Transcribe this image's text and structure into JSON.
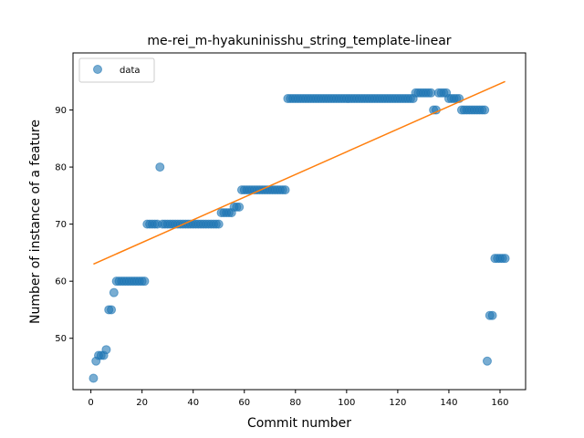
{
  "chart_data": {
    "type": "scatter",
    "title": "me-rei_m-hyakuninisshu_string_template-linear",
    "xlabel": "Commit number",
    "ylabel": "Number of instance of a feature",
    "xlim": [
      -7,
      170
    ],
    "ylim": [
      41,
      100
    ],
    "xticks": [
      0,
      20,
      40,
      60,
      80,
      100,
      120,
      140,
      160
    ],
    "yticks": [
      50,
      60,
      70,
      80,
      90
    ],
    "legend": {
      "position": "top-left",
      "entries": [
        "data"
      ]
    },
    "colors": {
      "data": "#1f77b4",
      "fit": "#ff7f0e"
    },
    "series": [
      {
        "name": "data",
        "kind": "scatter",
        "points": [
          [
            1,
            43
          ],
          [
            2,
            46
          ],
          [
            3,
            47
          ],
          [
            4,
            47
          ],
          [
            5,
            47
          ],
          [
            6,
            48
          ],
          [
            7,
            55
          ],
          [
            8,
            55
          ],
          [
            9,
            58
          ],
          [
            10,
            60
          ],
          [
            11,
            60
          ],
          [
            12,
            60
          ],
          [
            13,
            60
          ],
          [
            14,
            60
          ],
          [
            15,
            60
          ],
          [
            16,
            60
          ],
          [
            17,
            60
          ],
          [
            18,
            60
          ],
          [
            19,
            60
          ],
          [
            20,
            60
          ],
          [
            21,
            60
          ],
          [
            22,
            70
          ],
          [
            23,
            70
          ],
          [
            24,
            70
          ],
          [
            25,
            70
          ],
          [
            26,
            70
          ],
          [
            27,
            80
          ],
          [
            28,
            70
          ],
          [
            29,
            70
          ],
          [
            30,
            70
          ],
          [
            31,
            70
          ],
          [
            32,
            70
          ],
          [
            33,
            70
          ],
          [
            34,
            70
          ],
          [
            35,
            70
          ],
          [
            36,
            70
          ],
          [
            37,
            70
          ],
          [
            38,
            70
          ],
          [
            39,
            70
          ],
          [
            40,
            70
          ],
          [
            41,
            70
          ],
          [
            42,
            70
          ],
          [
            43,
            70
          ],
          [
            44,
            70
          ],
          [
            45,
            70
          ],
          [
            46,
            70
          ],
          [
            47,
            70
          ],
          [
            48,
            70
          ],
          [
            49,
            70
          ],
          [
            50,
            70
          ],
          [
            51,
            72
          ],
          [
            52,
            72
          ],
          [
            53,
            72
          ],
          [
            54,
            72
          ],
          [
            55,
            72
          ],
          [
            56,
            73
          ],
          [
            57,
            73
          ],
          [
            58,
            73
          ],
          [
            59,
            76
          ],
          [
            60,
            76
          ],
          [
            61,
            76
          ],
          [
            62,
            76
          ],
          [
            63,
            76
          ],
          [
            64,
            76
          ],
          [
            65,
            76
          ],
          [
            66,
            76
          ],
          [
            67,
            76
          ],
          [
            68,
            76
          ],
          [
            69,
            76
          ],
          [
            70,
            76
          ],
          [
            71,
            76
          ],
          [
            72,
            76
          ],
          [
            73,
            76
          ],
          [
            74,
            76
          ],
          [
            75,
            76
          ],
          [
            76,
            76
          ],
          [
            77,
            92
          ],
          [
            78,
            92
          ],
          [
            79,
            92
          ],
          [
            80,
            92
          ],
          [
            81,
            92
          ],
          [
            82,
            92
          ],
          [
            83,
            92
          ],
          [
            84,
            92
          ],
          [
            85,
            92
          ],
          [
            86,
            92
          ],
          [
            87,
            92
          ],
          [
            88,
            92
          ],
          [
            89,
            92
          ],
          [
            90,
            92
          ],
          [
            91,
            92
          ],
          [
            92,
            92
          ],
          [
            93,
            92
          ],
          [
            94,
            92
          ],
          [
            95,
            92
          ],
          [
            96,
            92
          ],
          [
            97,
            92
          ],
          [
            98,
            92
          ],
          [
            99,
            92
          ],
          [
            100,
            92
          ],
          [
            101,
            92
          ],
          [
            102,
            92
          ],
          [
            103,
            92
          ],
          [
            104,
            92
          ],
          [
            105,
            92
          ],
          [
            106,
            92
          ],
          [
            107,
            92
          ],
          [
            108,
            92
          ],
          [
            109,
            92
          ],
          [
            110,
            92
          ],
          [
            111,
            92
          ],
          [
            112,
            92
          ],
          [
            113,
            92
          ],
          [
            114,
            92
          ],
          [
            115,
            92
          ],
          [
            116,
            92
          ],
          [
            117,
            92
          ],
          [
            118,
            92
          ],
          [
            119,
            92
          ],
          [
            120,
            92
          ],
          [
            121,
            92
          ],
          [
            122,
            92
          ],
          [
            123,
            92
          ],
          [
            124,
            92
          ],
          [
            125,
            92
          ],
          [
            126,
            92
          ],
          [
            127,
            93
          ],
          [
            128,
            93
          ],
          [
            129,
            93
          ],
          [
            130,
            93
          ],
          [
            131,
            93
          ],
          [
            132,
            93
          ],
          [
            133,
            93
          ],
          [
            134,
            90
          ],
          [
            135,
            90
          ],
          [
            136,
            93
          ],
          [
            137,
            93
          ],
          [
            138,
            93
          ],
          [
            139,
            93
          ],
          [
            140,
            92
          ],
          [
            141,
            92
          ],
          [
            142,
            92
          ],
          [
            143,
            92
          ],
          [
            144,
            92
          ],
          [
            145,
            90
          ],
          [
            146,
            90
          ],
          [
            147,
            90
          ],
          [
            148,
            90
          ],
          [
            149,
            90
          ],
          [
            150,
            90
          ],
          [
            151,
            90
          ],
          [
            152,
            90
          ],
          [
            153,
            90
          ],
          [
            154,
            90
          ],
          [
            155,
            46
          ],
          [
            156,
            54
          ],
          [
            157,
            54
          ],
          [
            158,
            64
          ],
          [
            159,
            64
          ],
          [
            160,
            64
          ],
          [
            161,
            64
          ],
          [
            162,
            64
          ]
        ]
      },
      {
        "name": "fit",
        "kind": "line",
        "points": [
          [
            1,
            63
          ],
          [
            162,
            95
          ]
        ]
      }
    ]
  }
}
